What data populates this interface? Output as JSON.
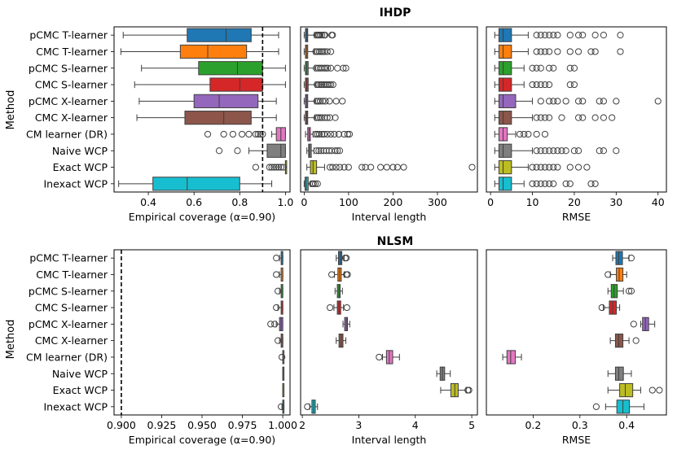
{
  "categories": [
    "pCMC T-learner",
    "CMC T-learner",
    "pCMC S-learner",
    "CMC S-learner",
    "pCMC X-learner",
    "CMC X-learner",
    "CM learner (DR)",
    "Naive WCP",
    "Exact WCP",
    "Inexact WCP"
  ],
  "colors": [
    "#1f77b4",
    "#ff7f0e",
    "#2ca02c",
    "#d62728",
    "#9467bd",
    "#8c564b",
    "#e377c2",
    "#7f7f7f",
    "#bcbd22",
    "#17becf"
  ],
  "chart_data": [
    {
      "type": "boxplot",
      "row": "IHDP",
      "title": "IHDP",
      "ylabel": "Method",
      "xlabel": "Empirical coverage (α=0.90)",
      "xlim": [
        0.25,
        1.02
      ],
      "xticks": [
        0.4,
        0.6,
        0.8,
        1.0
      ],
      "xtick_labels": [
        "0.4",
        "0.6",
        "0.8",
        "1.0"
      ],
      "reference_line": 0.9,
      "boxes": [
        {
          "whislo": 0.29,
          "q1": 0.57,
          "med": 0.74,
          "q3": 0.85,
          "whishi": 0.97,
          "fliers": []
        },
        {
          "whislo": 0.28,
          "q1": 0.54,
          "med": 0.66,
          "q3": 0.83,
          "whishi": 0.97,
          "fliers": []
        },
        {
          "whislo": 0.37,
          "q1": 0.62,
          "med": 0.79,
          "q3": 0.9,
          "whishi": 1.0,
          "fliers": []
        },
        {
          "whislo": 0.34,
          "q1": 0.67,
          "med": 0.8,
          "q3": 0.9,
          "whishi": 1.0,
          "fliers": []
        },
        {
          "whislo": 0.36,
          "q1": 0.6,
          "med": 0.71,
          "q3": 0.88,
          "whishi": 0.96,
          "fliers": []
        },
        {
          "whislo": 0.35,
          "q1": 0.56,
          "med": 0.73,
          "q3": 0.85,
          "whishi": 0.96,
          "fliers": []
        },
        {
          "whislo": 0.94,
          "q1": 0.96,
          "med": 0.98,
          "q3": 1.0,
          "whishi": 1.0,
          "fliers": [
            0.66,
            0.73,
            0.77,
            0.81,
            0.84,
            0.87,
            0.88,
            0.89,
            0.9
          ]
        },
        {
          "whislo": 0.84,
          "q1": 0.92,
          "med": 0.98,
          "q3": 1.0,
          "whishi": 1.0,
          "fliers": [
            0.71,
            0.79
          ]
        },
        {
          "whislo": 1.0,
          "q1": 1.0,
          "med": 1.0,
          "q3": 1.0,
          "whishi": 1.0,
          "fliers": [
            0.87,
            0.93,
            0.94,
            0.95,
            0.96,
            0.97,
            0.98,
            0.99
          ]
        },
        {
          "whislo": 0.27,
          "q1": 0.42,
          "med": 0.57,
          "q3": 0.8,
          "whishi": 0.94,
          "fliers": []
        }
      ]
    },
    {
      "type": "boxplot",
      "row": "IHDP",
      "xlabel": "Interval length",
      "xlim": [
        -8,
        390
      ],
      "xticks": [
        0,
        100,
        200,
        300
      ],
      "xtick_labels": [
        "0",
        "100",
        "200",
        "300"
      ],
      "boxes": [
        {
          "whislo": 0,
          "q1": 3,
          "med": 5,
          "q3": 8,
          "whishi": 23,
          "fliers": [
            28,
            31,
            33,
            36,
            40,
            45,
            47,
            62,
            64
          ]
        },
        {
          "whislo": 0,
          "q1": 3,
          "med": 5,
          "q3": 8,
          "whishi": 22,
          "fliers": [
            26,
            30,
            34,
            38,
            42,
            46,
            52,
            60
          ]
        },
        {
          "whislo": 0,
          "q1": 3,
          "med": 5,
          "q3": 9,
          "whishi": 24,
          "fliers": [
            27,
            32,
            36,
            40,
            45,
            49,
            53,
            60,
            75,
            88,
            94
          ]
        },
        {
          "whislo": 0,
          "q1": 3,
          "med": 5,
          "q3": 9,
          "whishi": 25,
          "fliers": [
            29,
            33,
            37,
            40,
            44,
            48,
            52,
            56,
            60,
            65
          ]
        },
        {
          "whislo": 0,
          "q1": 3,
          "med": 5,
          "q3": 8,
          "whishi": 24,
          "fliers": [
            28,
            32,
            36,
            42,
            48,
            57,
            72,
            86
          ]
        },
        {
          "whislo": 0,
          "q1": 3,
          "med": 5,
          "q3": 8,
          "whishi": 24,
          "fliers": [
            28,
            32,
            36,
            40,
            46,
            52,
            58,
            70
          ]
        },
        {
          "whislo": 3,
          "q1": 8,
          "med": 11,
          "q3": 14,
          "whishi": 20,
          "fliers": [
            26,
            30,
            34,
            40,
            45,
            52,
            60,
            68,
            78,
            90,
            98,
            102
          ]
        },
        {
          "whislo": 6,
          "q1": 10,
          "med": 12,
          "q3": 16,
          "whishi": 22,
          "fliers": [
            28,
            33,
            38,
            44,
            50,
            56,
            62,
            70,
            75,
            80
          ]
        },
        {
          "whislo": 6,
          "q1": 14,
          "med": 20,
          "q3": 28,
          "whishi": 46,
          "fliers": [
            58,
            64,
            72,
            80,
            90,
            100,
            130,
            138,
            150,
            172,
            186,
            200,
            210,
            224,
            378
          ]
        },
        {
          "whislo": 0,
          "q1": 2,
          "med": 5,
          "q3": 9,
          "whishi": 14,
          "fliers": [
            18,
            21,
            25,
            30
          ]
        }
      ]
    },
    {
      "type": "boxplot",
      "row": "IHDP",
      "xlabel": "RMSE",
      "xlim": [
        -1,
        42
      ],
      "xticks": [
        0,
        10,
        20,
        30,
        40
      ],
      "xtick_labels": [
        "0",
        "10",
        "20",
        "30",
        "40"
      ],
      "boxes": [
        {
          "whislo": 1,
          "q1": 2,
          "med": 3,
          "q3": 5,
          "whishi": 9,
          "fliers": [
            11,
            12,
            13,
            14,
            15,
            16,
            19,
            21,
            22,
            25,
            27,
            31
          ]
        },
        {
          "whislo": 1,
          "q1": 2,
          "med": 3,
          "q3": 5,
          "whishi": 9,
          "fliers": [
            11,
            12,
            13,
            14,
            16,
            19,
            21,
            24,
            25,
            31
          ]
        },
        {
          "whislo": 1,
          "q1": 2,
          "med": 3,
          "q3": 5,
          "whishi": 8,
          "fliers": [
            10,
            11,
            12,
            14,
            15,
            19,
            20
          ]
        },
        {
          "whislo": 1,
          "q1": 2,
          "med": 3,
          "q3": 5,
          "whishi": 8,
          "fliers": [
            10,
            11,
            12,
            13,
            14,
            19,
            20
          ]
        },
        {
          "whislo": 1,
          "q1": 2,
          "med": 3,
          "q3": 6,
          "whishi": 10,
          "fliers": [
            12,
            14,
            15,
            16,
            18,
            21,
            22,
            26,
            27,
            30,
            40
          ]
        },
        {
          "whislo": 1,
          "q1": 2,
          "med": 3,
          "q3": 5,
          "whishi": 10,
          "fliers": [
            11,
            12,
            13,
            14,
            17,
            21,
            22,
            25,
            27,
            29
          ]
        },
        {
          "whislo": 1,
          "q1": 2,
          "med": 3,
          "q3": 4,
          "whishi": 6,
          "fliers": [
            7,
            8,
            9,
            11,
            13
          ]
        },
        {
          "whislo": 1,
          "q1": 2,
          "med": 3,
          "q3": 5,
          "whishi": 10,
          "fliers": [
            11,
            12,
            13,
            14,
            15,
            16,
            17,
            18,
            20,
            21,
            26,
            27,
            30
          ]
        },
        {
          "whislo": 1,
          "q1": 2,
          "med": 3,
          "q3": 5,
          "whishi": 9,
          "fliers": [
            10,
            11,
            12,
            13,
            14,
            15,
            16,
            19,
            21,
            23
          ]
        },
        {
          "whislo": 1,
          "q1": 2,
          "med": 3,
          "q3": 5,
          "whishi": 8,
          "fliers": [
            10,
            11,
            12,
            13,
            14,
            15,
            18,
            19,
            24,
            25
          ]
        }
      ]
    },
    {
      "type": "boxplot",
      "row": "NLSM",
      "title": "NLSM",
      "ylabel": "Method",
      "xlabel": "Empirical coverage (α=0.90)",
      "xlim": [
        0.8955,
        1.0045
      ],
      "xticks": [
        0.9,
        0.925,
        0.95,
        0.975,
        1.0
      ],
      "xtick_labels": [
        "0.900",
        "0.925",
        "0.950",
        "0.975",
        "1.000"
      ],
      "reference_line": 0.9,
      "boxes": [
        {
          "whislo": 0.998,
          "q1": 0.999,
          "med": 1.0,
          "q3": 1.0,
          "whishi": 1.0,
          "fliers": [
            0.996
          ]
        },
        {
          "whislo": 0.998,
          "q1": 0.999,
          "med": 1.0,
          "q3": 1.0,
          "whishi": 1.0,
          "fliers": [
            0.996
          ]
        },
        {
          "whislo": 0.998,
          "q1": 0.999,
          "med": 1.0,
          "q3": 1.0,
          "whishi": 1.0,
          "fliers": [
            0.997
          ]
        },
        {
          "whislo": 0.997,
          "q1": 0.999,
          "med": 1.0,
          "q3": 1.0,
          "whishi": 1.0,
          "fliers": [
            0.996
          ]
        },
        {
          "whislo": 0.996,
          "q1": 0.998,
          "med": 0.999,
          "q3": 1.0,
          "whishi": 1.0,
          "fliers": [
            0.9925,
            0.995
          ]
        },
        {
          "whislo": 0.998,
          "q1": 0.999,
          "med": 1.0,
          "q3": 1.0,
          "whishi": 1.0,
          "fliers": [
            0.997
          ]
        },
        {
          "whislo": 1.0,
          "q1": 1.0,
          "med": 1.0,
          "q3": 1.0,
          "whishi": 1.0,
          "fliers": [
            0.9995
          ]
        },
        {
          "whislo": 1.0,
          "q1": 1.0,
          "med": 1.0,
          "q3": 1.0,
          "whishi": 1.0,
          "fliers": []
        },
        {
          "whislo": 1.0,
          "q1": 1.0,
          "med": 1.0,
          "q3": 1.0,
          "whishi": 1.0,
          "fliers": []
        },
        {
          "whislo": 0.9995,
          "q1": 1.0,
          "med": 1.0,
          "q3": 1.0,
          "whishi": 1.0,
          "fliers": [
            0.999
          ]
        }
      ]
    },
    {
      "type": "boxplot",
      "row": "NLSM",
      "xlabel": "Interval length",
      "xlim": [
        1.97,
        5.1
      ],
      "xticks": [
        2,
        3,
        4,
        5
      ],
      "xtick_labels": [
        "2",
        "3",
        "4",
        "5"
      ],
      "boxes": [
        {
          "whislo": 2.6,
          "q1": 2.64,
          "med": 2.67,
          "q3": 2.7,
          "whishi": 2.74,
          "fliers": [
            2.76,
            2.78
          ]
        },
        {
          "whislo": 2.57,
          "q1": 2.63,
          "med": 2.66,
          "q3": 2.69,
          "whishi": 2.74,
          "fliers": [
            2.52,
            2.78,
            2.8
          ]
        },
        {
          "whislo": 2.58,
          "q1": 2.62,
          "med": 2.65,
          "q3": 2.67,
          "whishi": 2.71,
          "fliers": []
        },
        {
          "whislo": 2.56,
          "q1": 2.62,
          "med": 2.65,
          "q3": 2.68,
          "whishi": 2.73,
          "fliers": [
            2.49,
            2.79
          ]
        },
        {
          "whislo": 2.72,
          "q1": 2.75,
          "med": 2.78,
          "q3": 2.8,
          "whishi": 2.84,
          "fliers": []
        },
        {
          "whislo": 2.6,
          "q1": 2.65,
          "med": 2.69,
          "q3": 2.72,
          "whishi": 2.77,
          "fliers": []
        },
        {
          "whislo": 3.42,
          "q1": 3.49,
          "med": 3.54,
          "q3": 3.6,
          "whishi": 3.72,
          "fliers": [
            3.36
          ]
        },
        {
          "whislo": 4.38,
          "q1": 4.44,
          "med": 4.48,
          "q3": 4.52,
          "whishi": 4.62,
          "fliers": []
        },
        {
          "whislo": 4.45,
          "q1": 4.63,
          "med": 4.7,
          "q3": 4.76,
          "whishi": 4.9,
          "fliers": [
            4.93,
            4.95
          ]
        },
        {
          "whislo": 2.13,
          "q1": 2.17,
          "med": 2.2,
          "q3": 2.23,
          "whishi": 2.27,
          "fliers": [
            2.09
          ]
        }
      ]
    },
    {
      "type": "boxplot",
      "row": "NLSM",
      "xlabel": "RMSE",
      "xlim": [
        0.1,
        0.485
      ],
      "xticks": [
        0.2,
        0.3,
        0.4
      ],
      "xtick_labels": [
        "0.2",
        "0.3",
        "0.4"
      ],
      "boxes": [
        {
          "whislo": 0.37,
          "q1": 0.377,
          "med": 0.383,
          "q3": 0.391,
          "whishi": 0.405,
          "fliers": [
            0.41
          ]
        },
        {
          "whislo": 0.365,
          "q1": 0.378,
          "med": 0.384,
          "q3": 0.392,
          "whishi": 0.4,
          "fliers": [
            0.36
          ]
        },
        {
          "whislo": 0.36,
          "q1": 0.367,
          "med": 0.373,
          "q3": 0.38,
          "whishi": 0.393,
          "fliers": [
            0.405,
            0.41
          ]
        },
        {
          "whislo": 0.35,
          "q1": 0.363,
          "med": 0.37,
          "q3": 0.378,
          "whishi": 0.385,
          "fliers": [
            0.347
          ]
        },
        {
          "whislo": 0.43,
          "q1": 0.434,
          "med": 0.44,
          "q3": 0.447,
          "whishi": 0.46,
          "fliers": [
            0.415
          ]
        },
        {
          "whislo": 0.365,
          "q1": 0.376,
          "med": 0.383,
          "q3": 0.392,
          "whishi": 0.405,
          "fliers": [
            0.42
          ]
        },
        {
          "whislo": 0.135,
          "q1": 0.144,
          "med": 0.152,
          "q3": 0.162,
          "whishi": 0.175,
          "fliers": []
        },
        {
          "whislo": 0.36,
          "q1": 0.376,
          "med": 0.383,
          "q3": 0.393,
          "whishi": 0.41,
          "fliers": []
        },
        {
          "whislo": 0.36,
          "q1": 0.385,
          "med": 0.397,
          "q3": 0.413,
          "whishi": 0.43,
          "fliers": [
            0.455,
            0.47
          ]
        },
        {
          "whislo": 0.355,
          "q1": 0.379,
          "med": 0.392,
          "q3": 0.406,
          "whishi": 0.437,
          "fliers": [
            0.335
          ]
        }
      ]
    }
  ]
}
